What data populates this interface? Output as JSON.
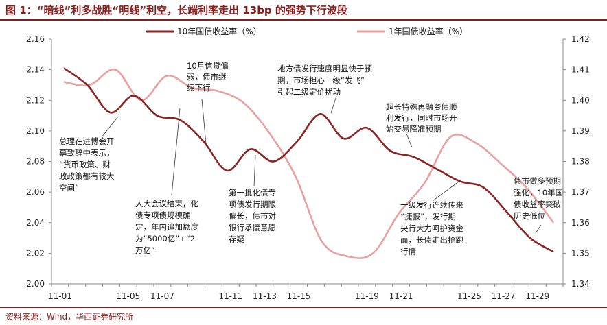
{
  "title": "图 1：“暗线”利多战胜“明线”利空，长端利率走出 13bp 的强势下行波段",
  "source": "资料来源：Wind，华西证券研究所",
  "colors": {
    "accent": "#8B1A1A",
    "series_10y": "#8B2323",
    "series_1y": "#E8A0A0"
  },
  "chart_data": {
    "type": "line",
    "xlabel": "",
    "ylabel": "",
    "ylabel_right": "",
    "x": [
      "11-01",
      "11-02",
      "11-03",
      "11-04",
      "11-05",
      "11-06",
      "11-07",
      "11-08",
      "11-09",
      "11-10",
      "11-11",
      "11-12",
      "11-13",
      "11-14",
      "11-15",
      "11-16",
      "11-17",
      "11-18",
      "11-19",
      "11-20",
      "11-21",
      "11-22",
      "11-23",
      "11-24",
      "11-25",
      "11-26",
      "11-27",
      "11-28",
      "11-29",
      "11-30"
    ],
    "x_tick_labels": [
      "11-01",
      "11-05",
      "11-07",
      "11-11",
      "11-13",
      "11-15",
      "11-19",
      "11-21",
      "11-25",
      "11-27",
      "11-29"
    ],
    "ylim_left": [
      2.0,
      2.16
    ],
    "yticks_left": [
      "2.16",
      "2.14",
      "2.12",
      "2.10",
      "2.08",
      "2.06",
      "2.04",
      "2.02",
      "2.00"
    ],
    "ylim_right": [
      1.34,
      1.42
    ],
    "yticks_right": [
      "1.42",
      "1.41",
      "1.40",
      "1.39",
      "1.38",
      "1.37",
      "1.36",
      "1.35",
      "1.34"
    ],
    "grid": false,
    "legend_position": "top",
    "series": [
      {
        "name": "10年国债收益率（%）",
        "axis": "left",
        "values": [
          2.141,
          2.13,
          2.112,
          2.123,
          2.11,
          2.107,
          2.093,
          2.074,
          2.088,
          2.08,
          2.093,
          2.111,
          2.095,
          2.102,
          2.087,
          2.083,
          2.075,
          2.067,
          2.063,
          2.047,
          2.03,
          2.021,
          null,
          null,
          null,
          null,
          null,
          null,
          null,
          null
        ]
      },
      {
        "name": "1年国债收益率（%）",
        "axis": "right",
        "values": [
          1.406,
          1.405,
          1.41,
          1.4,
          1.408,
          1.404,
          1.403,
          1.399,
          1.389,
          1.375,
          1.354,
          1.349,
          1.35,
          1.363,
          1.373,
          1.388,
          1.386,
          1.379,
          1.371,
          1.36,
          null,
          null,
          null,
          null,
          null,
          null,
          null,
          null,
          null,
          null
        ]
      }
    ],
    "annotations": [
      {
        "lines": [
          "总理在进博会开",
          "幕致辞中表示，",
          "“货币政策、财",
          "政政策都有较大",
          "空间”"
        ]
      },
      {
        "lines": [
          "10月信贷偏",
          "弱，债市继",
          "续下行"
        ]
      },
      {
        "lines": [
          "人大会议结束，化",
          "债专项债规模确",
          "定，年内追加额度",
          "为“5000亿”+“2",
          "万亿”"
        ]
      },
      {
        "lines": [
          "第一批化债专",
          "项债发行期限",
          "偏长，债市对",
          "银行承接意愿",
          "存疑"
        ]
      },
      {
        "lines": [
          "地方债发行速度明显快于预",
          "期，市场担心一级“发飞”",
          "引起二级定价扰动"
        ]
      },
      {
        "lines": [
          "超长特殊再融资债顺",
          "利发行，同时市场开",
          "始交易降准预期"
        ]
      },
      {
        "lines": [
          "一级发行连续传来",
          "“捷报”，发行期",
          "央行大力呵护资金",
          "面，长债走出抢跑",
          "行情"
        ]
      },
      {
        "lines": [
          "债市做多预期",
          "强化，10年国",
          "债收益率突破",
          "历史低位"
        ]
      }
    ]
  }
}
